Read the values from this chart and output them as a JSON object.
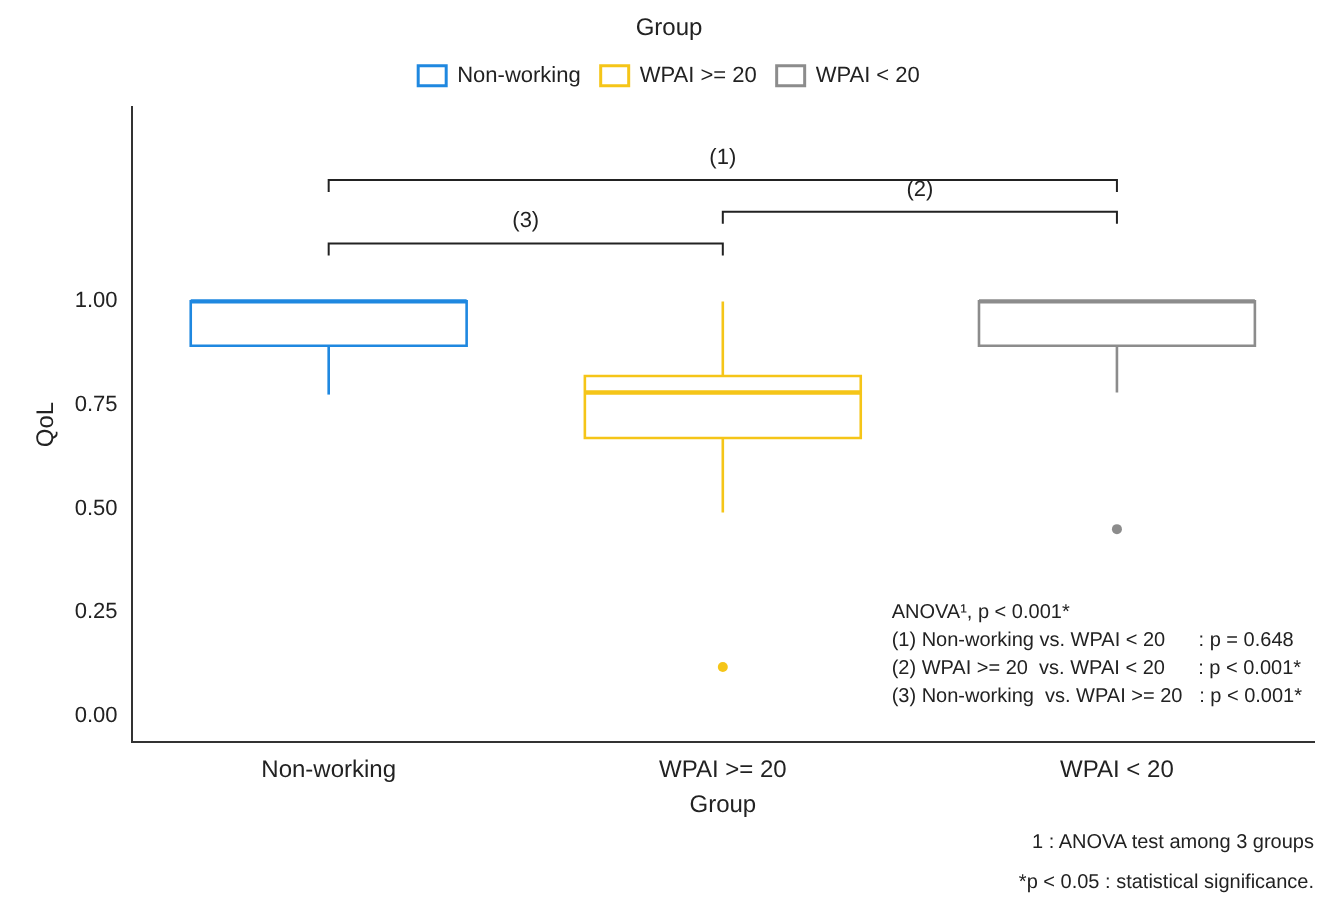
{
  "chart_data": {
    "type": "box",
    "xlabel": "Group",
    "ylabel": "QoL",
    "legend_title": "Group",
    "legend": "top",
    "categories": [
      "Non-working",
      "WPAI >= 20",
      "WPAI < 20"
    ],
    "series": [
      {
        "name": "Non-working",
        "color": "#1f88e0",
        "boxes": [
          {
            "low": 0.775,
            "q1": 0.893,
            "median": 1.0,
            "q3": 1.0,
            "high": 1.0
          },
          null,
          null
        ]
      },
      {
        "name": "WPAI >= 20",
        "color": "#f5c518",
        "boxes": [
          null,
          {
            "low": 0.49,
            "q1": 0.67,
            "median": 0.78,
            "q3": 0.82,
            "high": 1.0,
            "outliers": [
              0.117
            ]
          },
          null
        ]
      },
      {
        "name": "WPAI < 20",
        "color": "#8c8c8c",
        "boxes": [
          null,
          null,
          {
            "low": 0.78,
            "q1": 0.893,
            "median": 1.0,
            "q3": 1.0,
            "high": 1.0,
            "outliers": [
              0.45
            ]
          }
        ]
      }
    ],
    "ylim": [
      -0.065,
      1.47
    ],
    "yticks": [
      {
        "value": 0,
        "label": "0.00"
      },
      {
        "value": 0.25,
        "label": "0.25"
      },
      {
        "value": 0.5,
        "label": "0.50"
      },
      {
        "value": 0.75,
        "label": "0.75"
      },
      {
        "value": 1,
        "label": "1.00"
      }
    ],
    "grid": false,
    "annotations": [
      "(1)",
      "(2)",
      "(3)",
      "ANOVA¹, p < 0.001*",
      "(1) Non-working vs. WPAI < 20      : p = 0.648",
      "(2) WPAI >= 20  vs. WPAI < 20      : p < 0.001*",
      "(3) Non-working  vs. WPAI >= 20   : p < 0.001*",
      "1 : ANOVA test among 3 groups",
      "*p < 0.05 : statistical significance."
    ]
  }
}
